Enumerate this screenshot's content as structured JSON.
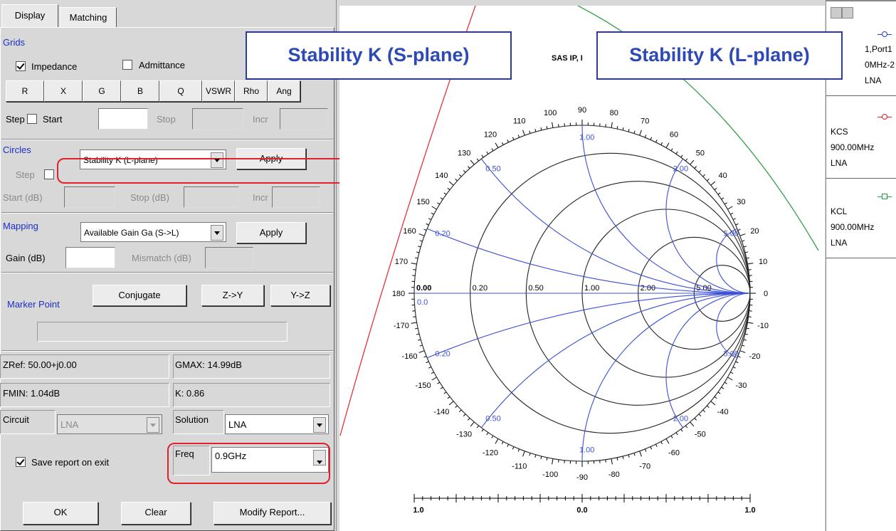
{
  "tabs": [
    "Display",
    "Matching"
  ],
  "grids": {
    "title": "Grids",
    "impedance": "Impedance",
    "admittance": "Admittance",
    "buttons": [
      "R",
      "X",
      "G",
      "B",
      "Q",
      "VSWR",
      "Rho",
      "Ang"
    ]
  },
  "step_row": {
    "step": "Step",
    "start": "Start",
    "stop": "Stop",
    "incr": "Incr"
  },
  "circles": {
    "title": "Circles",
    "selected": "Stability K (L-plane)",
    "apply": "Apply",
    "step": "Step",
    "start": "Start (dB)",
    "stop": "Stop (dB)",
    "incr": "Incr"
  },
  "mapping": {
    "title": "Mapping",
    "selected": "Available Gain Ga (S->L)",
    "apply": "Apply",
    "gain": "Gain (dB)",
    "mismatch": "Mismatch (dB)"
  },
  "marker": {
    "title": "Marker Point",
    "buttons": [
      "Conjugate",
      "Z->Y",
      "Y->Z"
    ]
  },
  "info": {
    "zref": "ZRef: 50.00+j0.00",
    "gmax": "GMAX: 14.99dB",
    "fmin": "FMIN: 1.04dB",
    "k": "K: 0.86",
    "circuit_label": "Circuit",
    "circuit": "LNA",
    "solution_label": "Solution",
    "solution": "LNA",
    "save": "Save report on exit",
    "freq_label": "Freq",
    "freq": "0.9GHz"
  },
  "footer_buttons": [
    "OK",
    "Clear",
    "Modify Report..."
  ],
  "smith": {
    "callouts": [
      "Stability K (S-plane)",
      "Stability K (L-plane)"
    ],
    "watermark": "SAS IP, I",
    "angle_labels": [
      0,
      10,
      20,
      30,
      40,
      50,
      60,
      70,
      80,
      90,
      100,
      110,
      120,
      130,
      140,
      150,
      160,
      170,
      180,
      -10,
      -20,
      -30,
      -40,
      -50,
      -60,
      -70,
      -80,
      -90,
      -100,
      -110,
      -120,
      -130,
      -140,
      -150,
      -160,
      -170
    ],
    "resistance": [
      {
        "value": 0,
        "label": "0.00"
      },
      {
        "value": 0.2,
        "label": "0.20"
      },
      {
        "value": 0.5,
        "label": "0.50"
      },
      {
        "value": 1,
        "label": "1.00"
      },
      {
        "value": 2,
        "label": "2.00"
      },
      {
        "value": 5,
        "label": "5.00"
      }
    ],
    "reactance_upper": [
      {
        "value": 0.2,
        "label": "0.20"
      },
      {
        "value": 0.5,
        "label": "0.50"
      },
      {
        "value": 1,
        "label": "1.00"
      },
      {
        "value": 2,
        "label": "2.00"
      },
      {
        "value": 5,
        "label": "5.00"
      }
    ],
    "reactance_lower": [
      {
        "value": 0.2,
        "label": "0.20"
      },
      {
        "value": 0.5,
        "label": "0.50"
      },
      {
        "value": 1,
        "label": "1.00"
      },
      {
        "value": 2,
        "label": "2.00"
      },
      {
        "value": 5,
        "label": "5.00"
      }
    ],
    "origin_label": "0.0",
    "scale_labels": [
      "1.0",
      "0.0",
      "1.0"
    ]
  },
  "legend": [
    [
      "1,Port1",
      "0MHz-2",
      "LNA"
    ],
    [
      "KCS",
      "900.00MHz",
      "LNA"
    ],
    [
      "KCL",
      "900.00MHz",
      "LNA"
    ]
  ]
}
